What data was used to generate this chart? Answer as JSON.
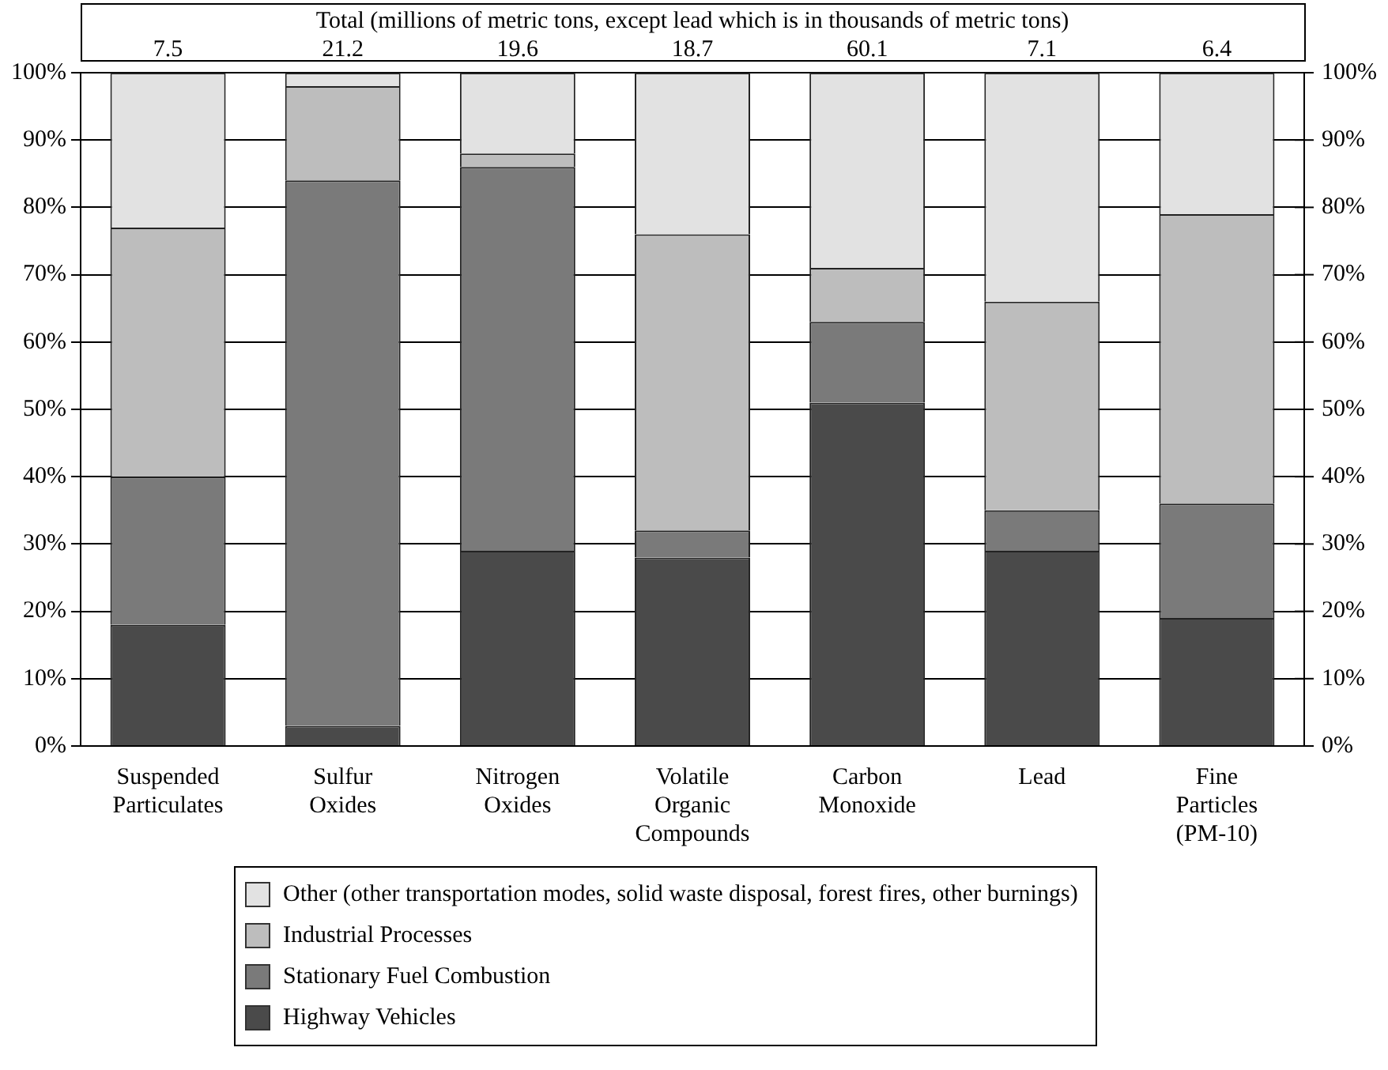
{
  "chart_data": {
    "type": "bar",
    "stacked": true,
    "title": "Total (millions of metric tons, except lead which is in thousands of metric tons)",
    "categories": [
      "Suspended Particulates",
      "Sulfur Oxides",
      "Nitrogen Oxides",
      "Volatile Organic Compounds",
      "Carbon Monoxide",
      "Lead",
      "Fine Particles (PM-10)"
    ],
    "annotations": [
      "7.5",
      "21.2",
      "19.6",
      "18.7",
      "60.1",
      "7.1",
      "6.4"
    ],
    "series": [
      {
        "name": "Highway Vehicles",
        "color": "#4a4a4a",
        "values": [
          18,
          3,
          29,
          28,
          51,
          29,
          19
        ]
      },
      {
        "name": "Stationary Fuel Combustion",
        "color": "#7a7a7a",
        "values": [
          22,
          81,
          57,
          4,
          12,
          6,
          17
        ]
      },
      {
        "name": "Industrial Processes",
        "color": "#bdbdbd",
        "values": [
          37,
          14,
          2,
          44,
          8,
          31,
          43
        ]
      },
      {
        "name": "Other (other transportation modes, solid waste disposal, forest fires, other burnings)",
        "color": "#e2e2e2",
        "values": [
          23,
          2,
          12,
          24,
          29,
          34,
          21
        ]
      }
    ],
    "ylim": [
      0,
      100
    ],
    "yticks": [
      {
        "value": 0,
        "label": "0%"
      },
      {
        "value": 10,
        "label": "10%"
      },
      {
        "value": 20,
        "label": "20%"
      },
      {
        "value": 30,
        "label": "30%"
      },
      {
        "value": 40,
        "label": "40%"
      },
      {
        "value": 50,
        "label": "50%"
      },
      {
        "value": 60,
        "label": "60%"
      },
      {
        "value": 70,
        "label": "70%"
      },
      {
        "value": 80,
        "label": "80%"
      },
      {
        "value": 90,
        "label": "90%"
      },
      {
        "value": 100,
        "label": "100%"
      }
    ],
    "y2lim": [
      0,
      100
    ],
    "y2ticks": [
      {
        "value": 0,
        "label": "0%"
      },
      {
        "value": 10,
        "label": "10%"
      },
      {
        "value": 20,
        "label": "20%"
      },
      {
        "value": 30,
        "label": "30%"
      },
      {
        "value": 40,
        "label": "40%"
      },
      {
        "value": 50,
        "label": "50%"
      },
      {
        "value": 60,
        "label": "60%"
      },
      {
        "value": 70,
        "label": "70%"
      },
      {
        "value": 80,
        "label": "80%"
      },
      {
        "value": 90,
        "label": "90%"
      },
      {
        "value": 100,
        "label": "100%"
      }
    ],
    "grid": "y",
    "legend": "bottom"
  }
}
